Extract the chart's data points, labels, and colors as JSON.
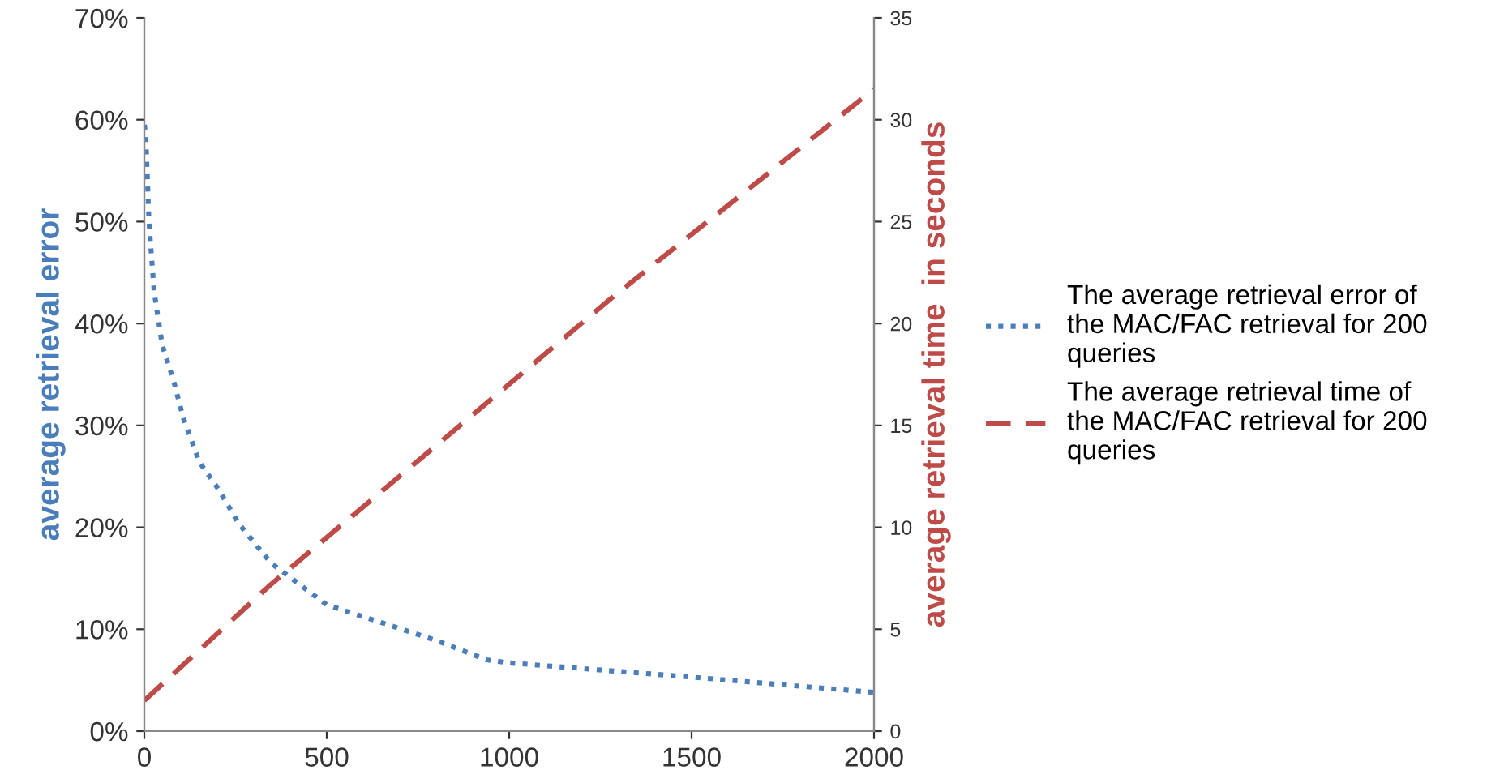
{
  "chart_data": {
    "type": "line",
    "ylabel": "average retrieval error",
    "y2label": "average retrieval time  in seconds",
    "xlim": [
      0,
      2000
    ],
    "xticks": [
      0,
      500,
      1000,
      1500,
      2000
    ],
    "ylim": [
      0,
      70
    ],
    "yticks": [
      {
        "value": 0,
        "label": "0%"
      },
      {
        "value": 10,
        "label": "10%"
      },
      {
        "value": 20,
        "label": "20%"
      },
      {
        "value": 30,
        "label": "30%"
      },
      {
        "value": 40,
        "label": "40%"
      },
      {
        "value": 50,
        "label": "50%"
      },
      {
        "value": 60,
        "label": "60%"
      },
      {
        "value": 70,
        "label": "70%"
      }
    ],
    "y2lim": [
      0,
      35
    ],
    "y2ticks": [
      0,
      5,
      10,
      15,
      20,
      25,
      30,
      35
    ],
    "grid": false,
    "legend": "right",
    "series": [
      {
        "name": "The average retrieval error of the MAC/FAC retrieval for 200 queries",
        "color": "#4a7ebb",
        "line_style": "dotted",
        "x": [
          0,
          4,
          13,
          27,
          49,
          80,
          107,
          151,
          204,
          258,
          347,
          500,
          800,
          938,
          1000,
          1502,
          2000
        ],
        "values": [
          59.5,
          58.5,
          49.8,
          43.1,
          37.9,
          34.4,
          30.7,
          26.4,
          23.7,
          20.4,
          16.5,
          12.4,
          8.9,
          7.0,
          6.7,
          5.3,
          3.8
        ]
      },
      {
        "name": "The average retrieval time of the MAC/FAC retrieval for 200 queries",
        "color": "#be4b48",
        "line_style": "dashed",
        "axis": "y2",
        "x": [
          0,
          347,
          1284,
          2000
        ],
        "values": [
          1.5,
          7.2,
          21.3,
          31.5
        ]
      }
    ]
  }
}
